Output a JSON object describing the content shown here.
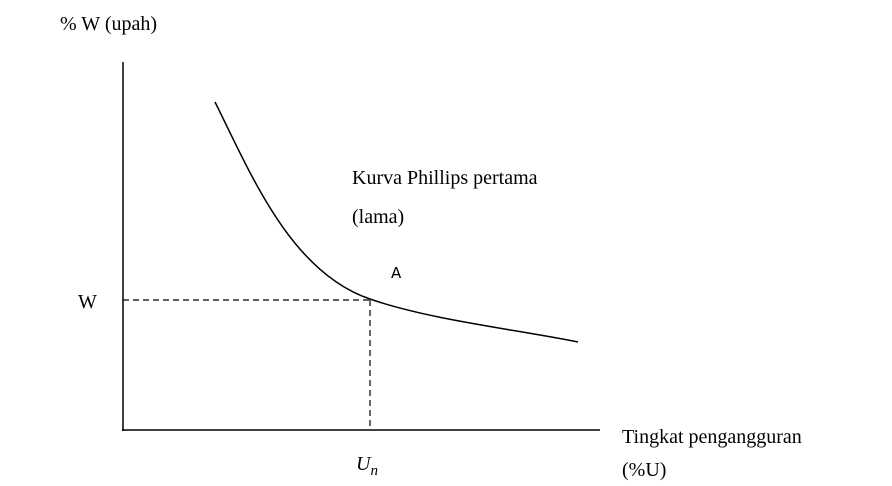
{
  "y_axis_label": "% W (upah)",
  "x_axis_label": [
    "Tingkat pengangguran",
    "(%U)"
  ],
  "curve_label": [
    "Kurva Phillips pertama",
    "(lama)"
  ],
  "point_label": "A",
  "y_mark": "W",
  "x_mark": {
    "base": "U",
    "subscript": "n"
  }
}
